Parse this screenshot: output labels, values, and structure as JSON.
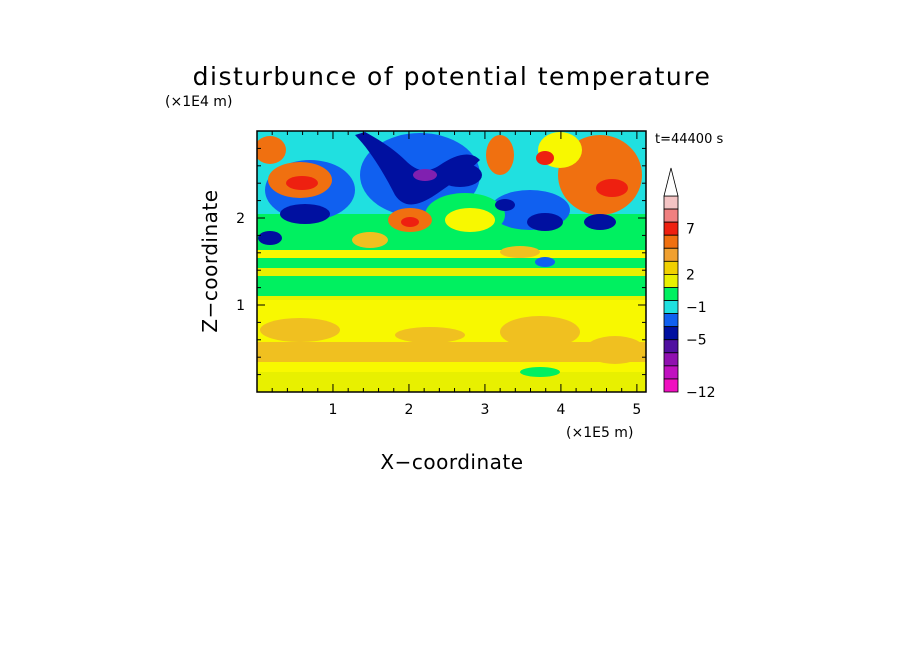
{
  "chart_data": {
    "type": "heatmap",
    "title": "disturbunce of potential temperature",
    "time_label": "t=44400 s",
    "xlabel": "X−coordinate",
    "ylabel": "Z−coordinate",
    "x_unit": "(×1E5 m)",
    "y_unit": "(×1E4 m)",
    "xlim": [
      0,
      5.12
    ],
    "ylim": [
      0,
      3.0
    ],
    "x_ticks": [
      1,
      2,
      3,
      4,
      5
    ],
    "x_tick_labels": [
      "1",
      "2",
      "3",
      "4",
      "5"
    ],
    "y_ticks": [
      1,
      2
    ],
    "y_tick_labels": [
      "1",
      "2"
    ],
    "colorbar": {
      "labeled_levels": [
        "7",
        "2",
        "−1",
        "−5",
        "−12"
      ],
      "colors_top_to_bottom": [
        "#f4c4c4",
        "#f08080",
        "#ee2010",
        "#f07010",
        "#f0a030",
        "#f0d000",
        "#e8f000",
        "#00f060",
        "#20e0e0",
        "#1060f0",
        "#0010a0",
        "#5010a0",
        "#9010b0",
        "#c010c0",
        "#f010c0"
      ],
      "extend": "max"
    },
    "palette": {
      "magenta": "#f010c0",
      "purple": "#8020b0",
      "navy": "#0010a0",
      "blue": "#1060f0",
      "cyan": "#20e0e0",
      "green": "#00f060",
      "yellow_green": "#e8f000",
      "yellow": "#f8f800",
      "light_orange": "#f0c020",
      "orange": "#f07010",
      "red": "#ee2010"
    }
  }
}
